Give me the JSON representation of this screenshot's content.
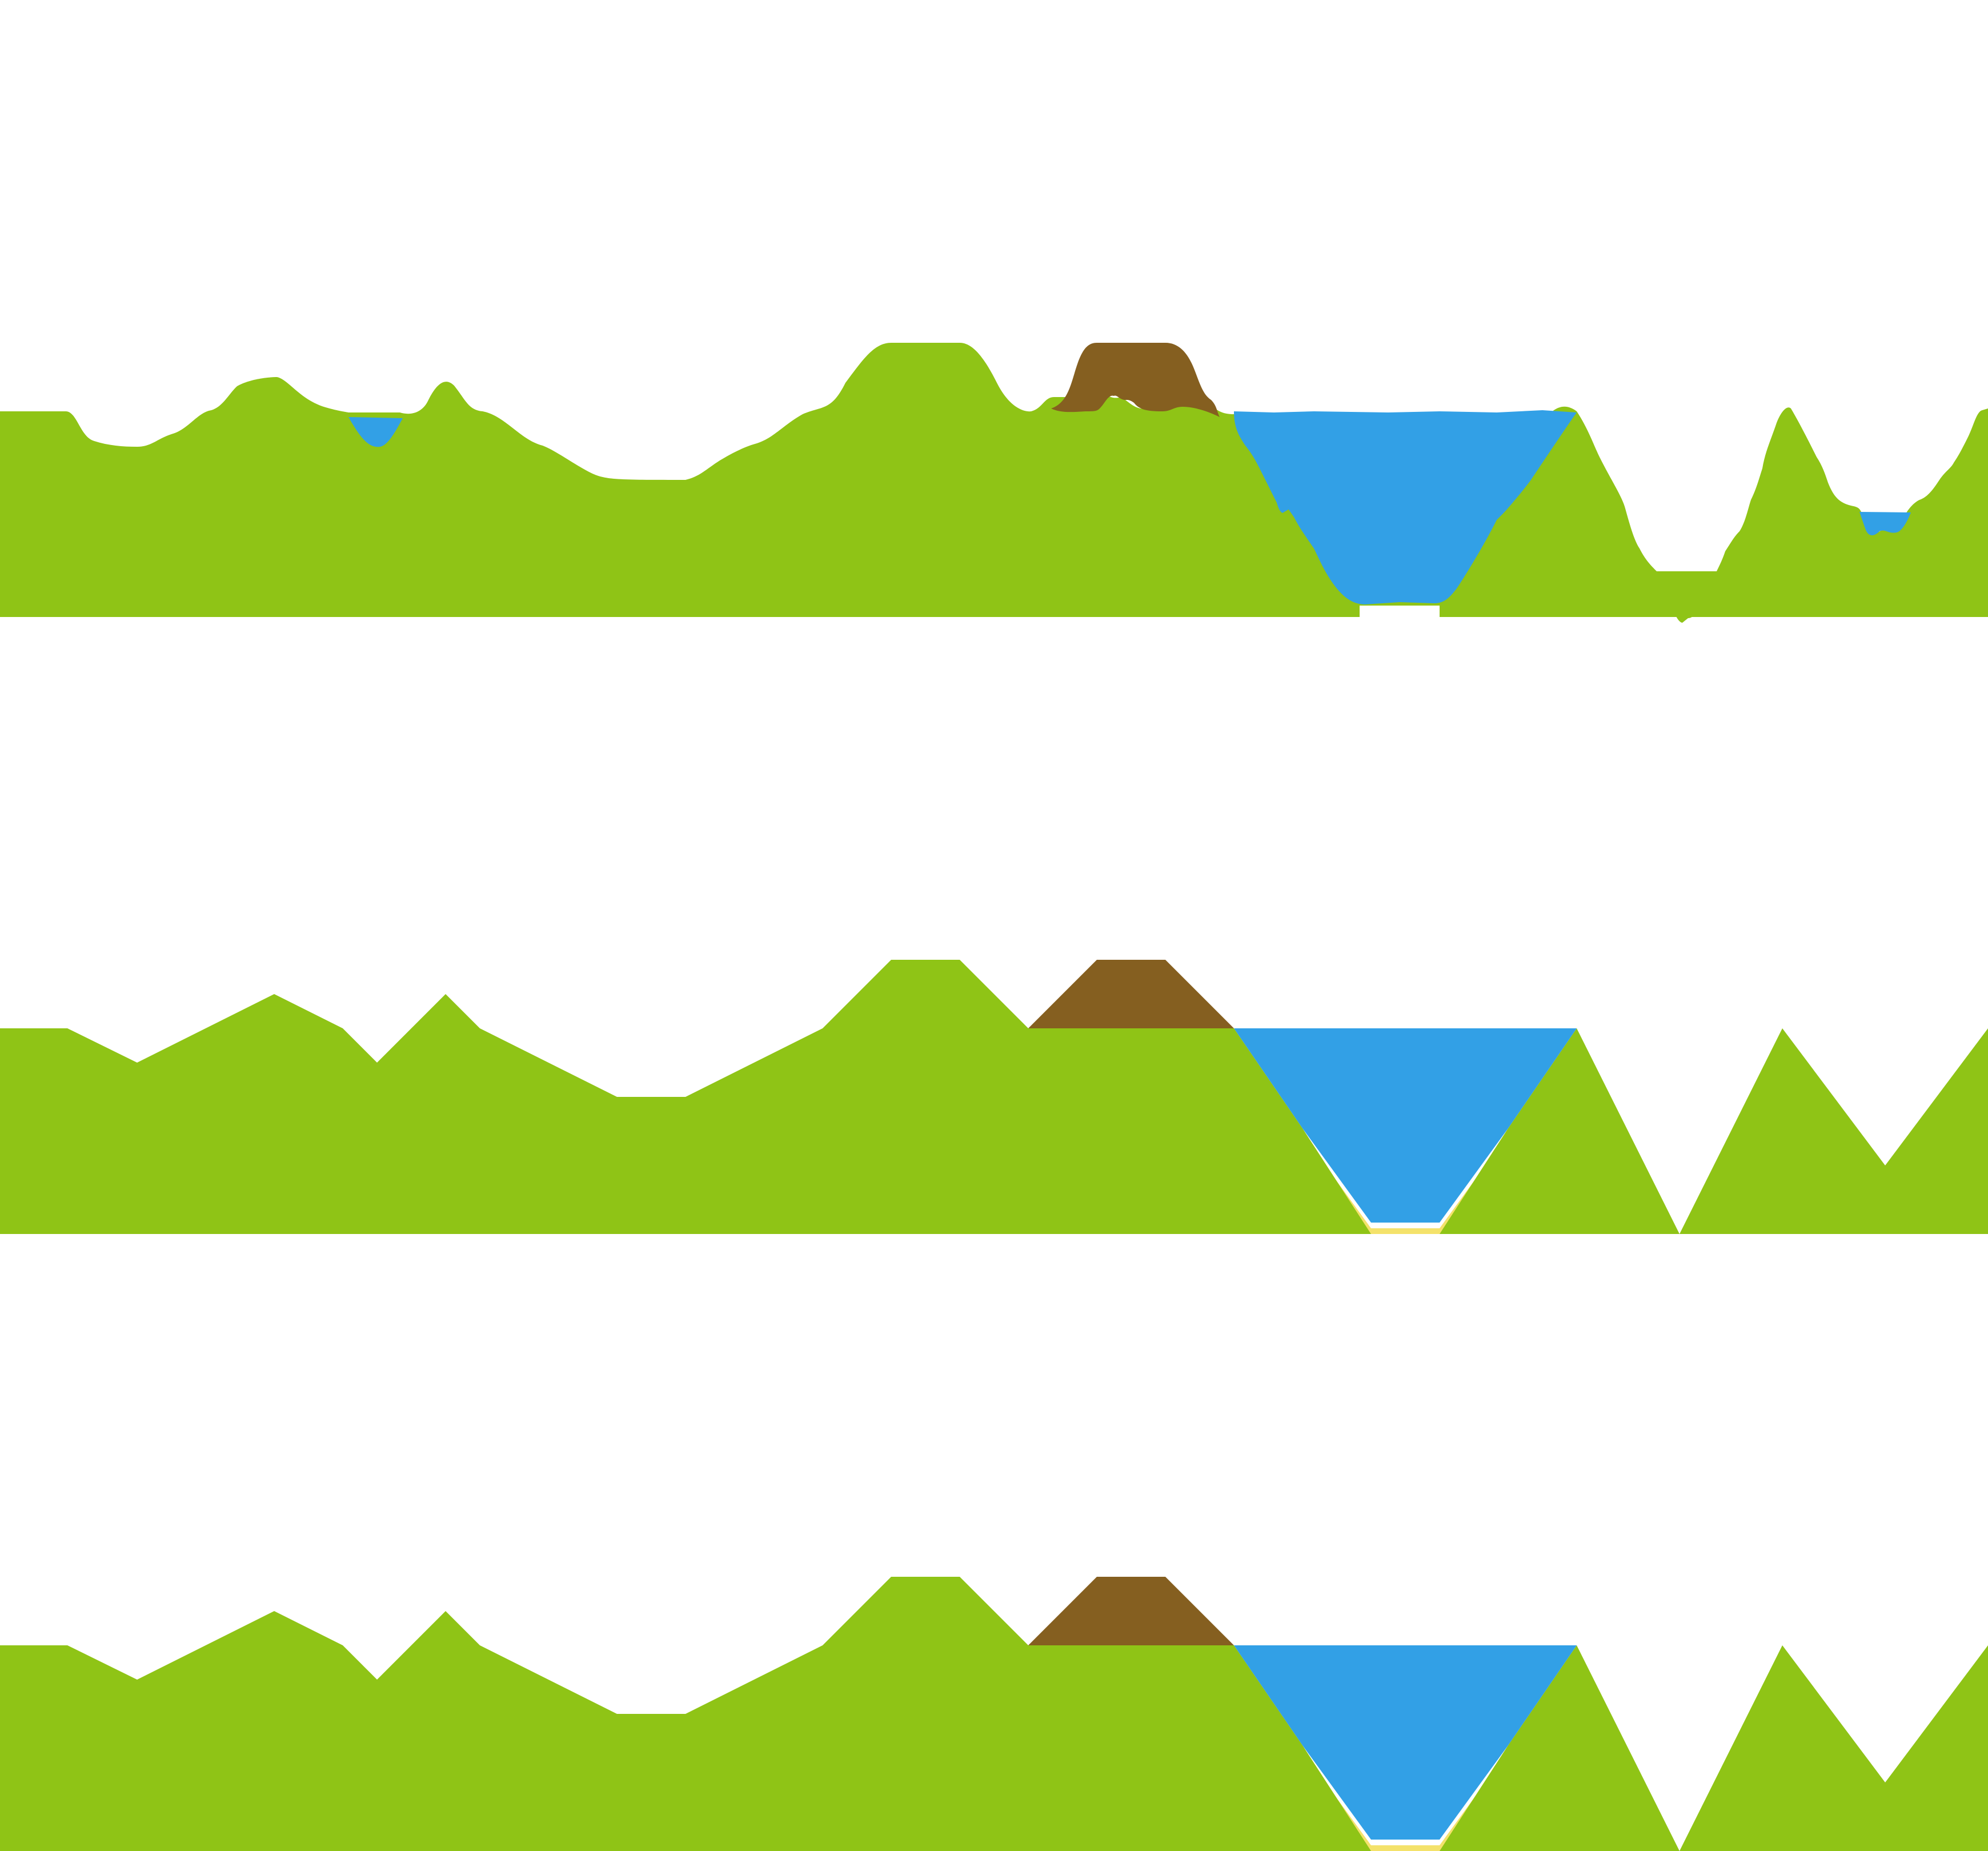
{
  "colors": {
    "background": "#ffffff",
    "grass": "#8fc416",
    "water": "#32a0e6",
    "rock": "#855f20",
    "sand": "#f4e26b"
  },
  "panels": [
    {
      "name": "smooth-terrain-profile",
      "style": "smooth"
    },
    {
      "name": "polygonal-terrain-profile",
      "style": "polygonal"
    },
    {
      "name": "polygonal-terrain-profile-copy",
      "style": "polygonal"
    }
  ]
}
